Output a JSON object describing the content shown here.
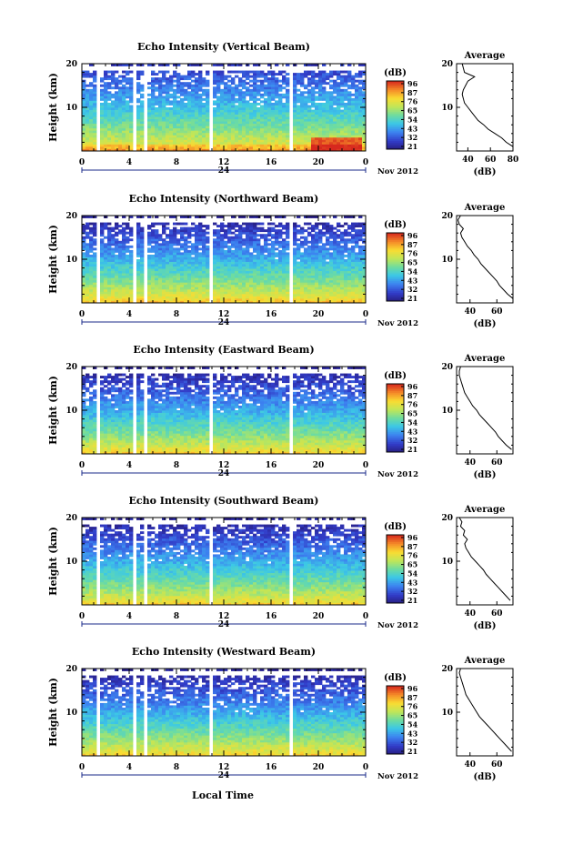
{
  "figure": {
    "x_axis_label": "Local Time",
    "time_ticks": [
      "0",
      "4",
      "8",
      "12",
      "16",
      "20",
      "0"
    ],
    "day_label": "24",
    "date_label": "Nov 2012",
    "height_label": "Height (km)",
    "height_ticks": [
      "10",
      "20"
    ],
    "colorbar_unit": "(dB)",
    "colorbar_ticks": [
      "96",
      "87",
      "76",
      "65",
      "54",
      "43",
      "32",
      "21"
    ],
    "average_title": "Average",
    "average_xlabel": "(dB)"
  },
  "chart_data": [
    {
      "type": "heatmap",
      "title": "Echo Intensity (Vertical Beam)",
      "xlabel": "Local Time",
      "ylabel": "Height (km)",
      "xlim": [
        0,
        24
      ],
      "ylim": [
        0,
        20
      ],
      "zlim": [
        21,
        96
      ],
      "z_unit": "dB",
      "surface_dB": 80,
      "top_dB": 28,
      "hot_patch": true,
      "data_gaps_hours": [
        [
          1.2,
          1.5
        ],
        [
          4.3,
          4.5
        ],
        [
          5.2,
          5.6
        ],
        [
          10.8,
          11.0
        ],
        [
          17.5,
          17.7
        ]
      ],
      "average_profile": {
        "xticks": [
          40,
          60,
          80
        ],
        "xlim": [
          30,
          80
        ],
        "height_km": [
          1,
          2,
          3,
          4,
          5,
          6,
          7,
          8,
          9,
          10,
          11,
          12,
          13,
          14,
          15,
          16,
          17,
          18,
          19,
          20
        ],
        "dB": [
          80,
          74,
          70,
          64,
          58,
          54,
          49,
          46,
          43,
          40,
          37,
          36,
          35,
          36,
          38,
          40,
          46,
          37,
          36,
          35
        ]
      }
    },
    {
      "type": "heatmap",
      "title": "Echo Intensity (Northward Beam)",
      "xlabel": "Local Time",
      "ylabel": "Height (km)",
      "xlim": [
        0,
        24
      ],
      "ylim": [
        0,
        20
      ],
      "zlim": [
        21,
        96
      ],
      "z_unit": "dB",
      "surface_dB": 82,
      "top_dB": 22,
      "hot_patch": false,
      "data_gaps_hours": [
        [
          1.2,
          1.5
        ],
        [
          4.3,
          4.5
        ],
        [
          5.2,
          5.6
        ],
        [
          10.8,
          11.0
        ],
        [
          17.5,
          17.7
        ]
      ],
      "average_profile": {
        "xticks": [
          40,
          60
        ],
        "xlim": [
          30,
          72
        ],
        "height_km": [
          1,
          2,
          3,
          4,
          5,
          6,
          7,
          8,
          9,
          10,
          11,
          12,
          13,
          14,
          15,
          16,
          17,
          18,
          19,
          20
        ],
        "dB": [
          72,
          68,
          65,
          62,
          60,
          57,
          54,
          51,
          48,
          46,
          43,
          41,
          38,
          36,
          34,
          33,
          35,
          32,
          31,
          33
        ]
      }
    },
    {
      "type": "heatmap",
      "title": "Echo Intensity (Eastward Beam)",
      "xlabel": "Local Time",
      "ylabel": "Height (km)",
      "xlim": [
        0,
        24
      ],
      "ylim": [
        0,
        20
      ],
      "zlim": [
        21,
        96
      ],
      "z_unit": "dB",
      "surface_dB": 80,
      "top_dB": 22,
      "hot_patch": false,
      "data_gaps_hours": [
        [
          1.2,
          1.5
        ],
        [
          4.3,
          4.5
        ],
        [
          5.2,
          5.6
        ],
        [
          10.8,
          11.0
        ],
        [
          17.5,
          17.7
        ]
      ],
      "average_profile": {
        "xticks": [
          40,
          60
        ],
        "xlim": [
          30,
          72
        ],
        "height_km": [
          1,
          2,
          3,
          4,
          5,
          6,
          7,
          8,
          9,
          10,
          11,
          12,
          13,
          14,
          15,
          16,
          17,
          18,
          19,
          20
        ],
        "dB": [
          71,
          67,
          64,
          61,
          59,
          56,
          53,
          50,
          47,
          45,
          42,
          40,
          38,
          36,
          35,
          34,
          33,
          32,
          32,
          33
        ]
      }
    },
    {
      "type": "heatmap",
      "title": "Echo Intensity (Southward Beam)",
      "xlabel": "Local Time",
      "ylabel": "Height (km)",
      "xlim": [
        0,
        24
      ],
      "ylim": [
        0,
        20
      ],
      "zlim": [
        21,
        96
      ],
      "z_unit": "dB",
      "surface_dB": 80,
      "top_dB": 22,
      "hot_patch": false,
      "data_gaps_hours": [
        [
          1.2,
          1.5
        ],
        [
          4.3,
          4.5
        ],
        [
          5.2,
          5.6
        ],
        [
          10.8,
          11.0
        ],
        [
          17.5,
          17.7
        ]
      ],
      "average_profile": {
        "xticks": [
          40,
          60
        ],
        "xlim": [
          30,
          72
        ],
        "height_km": [
          1,
          2,
          3,
          4,
          5,
          6,
          7,
          8,
          9,
          10,
          11,
          12,
          13,
          14,
          15,
          16,
          17,
          18,
          19,
          20
        ],
        "dB": [
          70,
          67,
          64,
          61,
          58,
          55,
          52,
          50,
          47,
          44,
          41,
          39,
          37,
          36,
          38,
          35,
          36,
          33,
          34,
          32
        ]
      }
    },
    {
      "type": "heatmap",
      "title": "Echo Intensity (Westward Beam)",
      "xlabel": "Local Time",
      "ylabel": "Height (km)",
      "xlim": [
        0,
        24
      ],
      "ylim": [
        0,
        20
      ],
      "zlim": [
        21,
        96
      ],
      "z_unit": "dB",
      "surface_dB": 80,
      "top_dB": 22,
      "hot_patch": false,
      "data_gaps_hours": [
        [
          1.2,
          1.5
        ],
        [
          4.3,
          4.5
        ],
        [
          5.2,
          5.6
        ],
        [
          10.8,
          11.0
        ],
        [
          17.5,
          17.7
        ]
      ],
      "average_profile": {
        "xticks": [
          40,
          60
        ],
        "xlim": [
          30,
          72
        ],
        "height_km": [
          1,
          2,
          3,
          4,
          5,
          6,
          7,
          8,
          9,
          10,
          11,
          12,
          13,
          14,
          15,
          16,
          17,
          18,
          19,
          20
        ],
        "dB": [
          71,
          68,
          65,
          62,
          59,
          56,
          53,
          50,
          47,
          45,
          43,
          41,
          39,
          37,
          36,
          35,
          34,
          33,
          32,
          33
        ]
      }
    }
  ]
}
